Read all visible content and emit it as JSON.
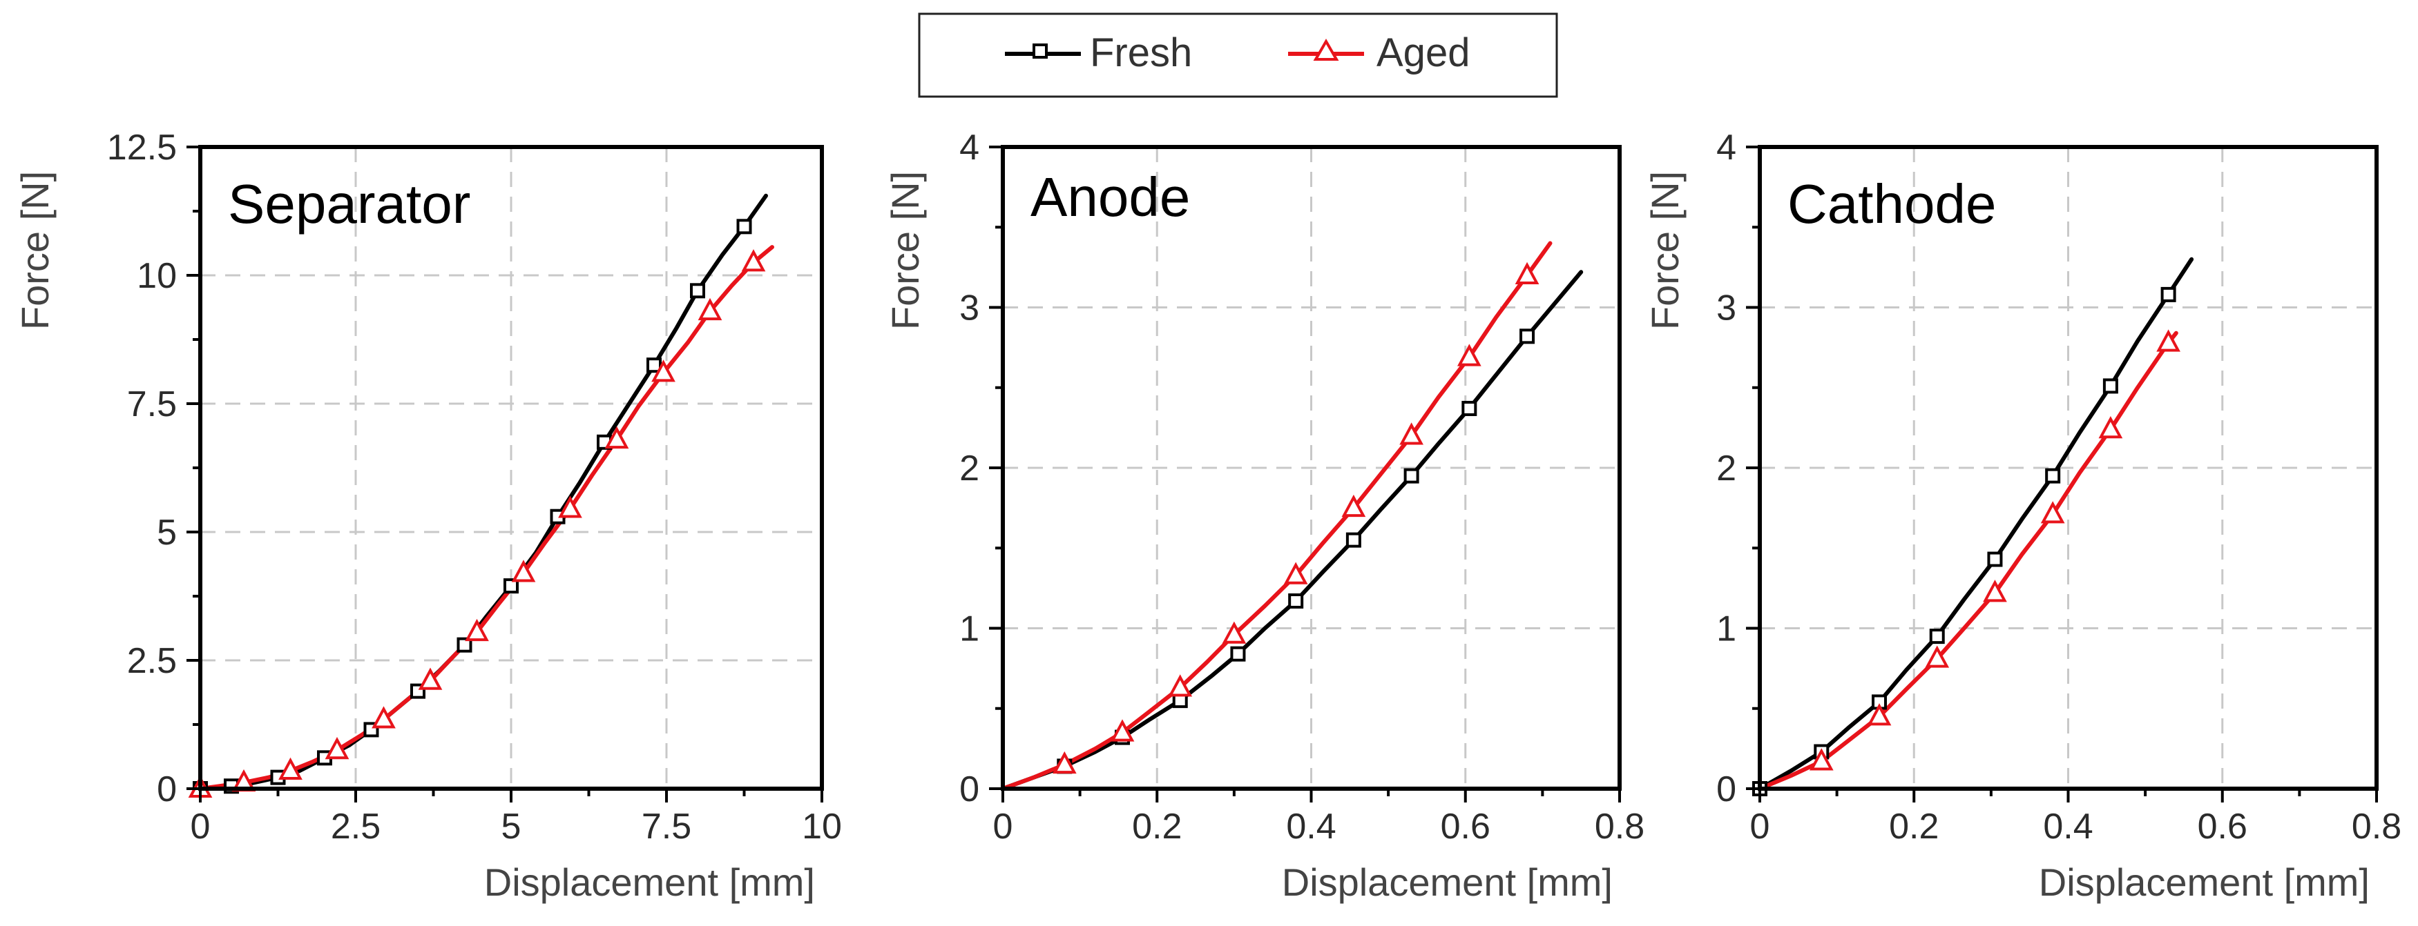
{
  "legend": {
    "entries": [
      {
        "name": "Fresh",
        "color": "#000000",
        "marker": "square"
      },
      {
        "name": "Aged",
        "color": "#e8141b",
        "marker": "triangle"
      }
    ]
  },
  "chart_data": [
    {
      "type": "line",
      "title": "Separator",
      "xlabel": "Displacement [mm]",
      "ylabel": "Force [N]",
      "xlim": [
        0,
        10
      ],
      "ylim": [
        0,
        12.5
      ],
      "xticks": [
        0,
        2.5,
        5,
        7.5,
        10
      ],
      "xtick_labels": [
        "0",
        "2.5",
        "5",
        "7.5",
        "10"
      ],
      "yticks": [
        0,
        2.5,
        5,
        7.5,
        10,
        12.5
      ],
      "ytick_labels": [
        "0",
        "2.5",
        "5",
        "7.5",
        "10",
        "12.5"
      ],
      "grid": true,
      "series": [
        {
          "name": "Fresh",
          "x": [
            0,
            0.25,
            0.5,
            0.8,
            1.25,
            1.6,
            2.0,
            2.4,
            2.75,
            3.1,
            3.5,
            3.85,
            4.25,
            4.6,
            5.0,
            5.4,
            5.75,
            6.1,
            6.5,
            6.9,
            7.3,
            7.65,
            8.0,
            8.4,
            8.75,
            9.1
          ],
          "y": [
            0,
            0.02,
            0.05,
            0.1,
            0.22,
            0.35,
            0.6,
            0.85,
            1.15,
            1.5,
            1.9,
            2.3,
            2.8,
            3.35,
            3.95,
            4.6,
            5.3,
            5.95,
            6.75,
            7.5,
            8.25,
            8.95,
            9.7,
            10.4,
            10.95,
            11.55
          ]
        },
        {
          "name": "Aged",
          "x": [
            0,
            0.3,
            0.7,
            1.1,
            1.45,
            1.8,
            2.2,
            2.6,
            2.95,
            3.3,
            3.7,
            4.05,
            4.45,
            4.8,
            5.2,
            5.55,
            5.95,
            6.3,
            6.7,
            7.05,
            7.45,
            7.85,
            8.2,
            8.55,
            8.9,
            9.2
          ],
          "y": [
            0,
            0.05,
            0.12,
            0.22,
            0.35,
            0.52,
            0.75,
            1.05,
            1.35,
            1.7,
            2.1,
            2.55,
            3.05,
            3.6,
            4.2,
            4.8,
            5.45,
            6.1,
            6.8,
            7.45,
            8.1,
            8.7,
            9.3,
            9.8,
            10.25,
            10.55
          ]
        }
      ],
      "marker_points": [
        {
          "series": "Fresh",
          "x": [
            0,
            0.5,
            1.25,
            2.0,
            2.75,
            3.5,
            4.25,
            5.0,
            5.75,
            6.5,
            7.3,
            8.0,
            8.75
          ],
          "y": [
            0,
            0.05,
            0.22,
            0.6,
            1.15,
            1.9,
            2.8,
            3.95,
            5.3,
            6.75,
            8.25,
            9.7,
            10.95
          ]
        },
        {
          "series": "Aged",
          "x": [
            0,
            0.7,
            1.45,
            2.2,
            2.95,
            3.7,
            4.45,
            5.2,
            5.95,
            6.7,
            7.45,
            8.2,
            8.9
          ],
          "y": [
            0,
            0.12,
            0.35,
            0.75,
            1.35,
            2.1,
            3.05,
            4.2,
            5.45,
            6.8,
            8.1,
            9.3,
            10.25
          ]
        }
      ]
    },
    {
      "type": "line",
      "title": "Anode",
      "xlabel": "Displacement [mm]",
      "ylabel": "Force [N]",
      "xlim": [
        0,
        0.8
      ],
      "ylim": [
        0,
        4
      ],
      "xticks": [
        0,
        0.2,
        0.4,
        0.6,
        0.8
      ],
      "xtick_labels": [
        "0",
        "0.2",
        "0.4",
        "0.6",
        "0.8"
      ],
      "yticks": [
        0,
        1,
        2,
        3,
        4
      ],
      "ytick_labels": [
        "0",
        "1",
        "2",
        "3",
        "4"
      ],
      "grid": true,
      "series": [
        {
          "name": "Fresh",
          "x": [
            0,
            0.04,
            0.08,
            0.12,
            0.155,
            0.19,
            0.23,
            0.27,
            0.305,
            0.34,
            0.38,
            0.415,
            0.455,
            0.49,
            0.53,
            0.565,
            0.605,
            0.64,
            0.68,
            0.715,
            0.75
          ],
          "y": [
            0,
            0.07,
            0.14,
            0.23,
            0.32,
            0.43,
            0.55,
            0.7,
            0.84,
            1.0,
            1.17,
            1.35,
            1.55,
            1.74,
            1.95,
            2.15,
            2.37,
            2.58,
            2.82,
            3.02,
            3.22
          ]
        },
        {
          "name": "Aged",
          "x": [
            0,
            0.04,
            0.08,
            0.12,
            0.155,
            0.19,
            0.23,
            0.265,
            0.3,
            0.34,
            0.38,
            0.415,
            0.455,
            0.49,
            0.53,
            0.565,
            0.605,
            0.64,
            0.68,
            0.71
          ],
          "y": [
            0,
            0.07,
            0.15,
            0.25,
            0.35,
            0.48,
            0.63,
            0.79,
            0.96,
            1.14,
            1.33,
            1.53,
            1.75,
            1.96,
            2.2,
            2.44,
            2.69,
            2.94,
            3.2,
            3.4
          ]
        }
      ],
      "marker_points": [
        {
          "series": "Fresh",
          "x": [
            0.08,
            0.155,
            0.23,
            0.305,
            0.38,
            0.455,
            0.53,
            0.605,
            0.68
          ],
          "y": [
            0.14,
            0.32,
            0.55,
            0.84,
            1.17,
            1.55,
            1.95,
            2.37,
            2.82
          ]
        },
        {
          "series": "Aged",
          "x": [
            0.08,
            0.155,
            0.23,
            0.3,
            0.38,
            0.455,
            0.53,
            0.605,
            0.68
          ],
          "y": [
            0.15,
            0.35,
            0.63,
            0.96,
            1.33,
            1.75,
            2.2,
            2.69,
            3.2
          ]
        }
      ]
    },
    {
      "type": "line",
      "title": "Cathode",
      "xlabel": "Displacement [mm]",
      "ylabel": "Force [N]",
      "xlim": [
        0,
        0.8
      ],
      "ylim": [
        0,
        4
      ],
      "xticks": [
        0,
        0.2,
        0.4,
        0.6,
        0.8
      ],
      "xtick_labels": [
        "0",
        "0.2",
        "0.4",
        "0.6",
        "0.8"
      ],
      "yticks": [
        0,
        1,
        2,
        3,
        4
      ],
      "ytick_labels": [
        "0",
        "1",
        "2",
        "3",
        "4"
      ],
      "grid": true,
      "series": [
        {
          "name": "Fresh",
          "x": [
            0,
            0.04,
            0.08,
            0.115,
            0.155,
            0.19,
            0.23,
            0.265,
            0.305,
            0.34,
            0.38,
            0.415,
            0.455,
            0.49,
            0.53,
            0.56
          ],
          "y": [
            0,
            0.11,
            0.23,
            0.38,
            0.54,
            0.74,
            0.95,
            1.18,
            1.43,
            1.68,
            1.95,
            2.22,
            2.51,
            2.79,
            3.08,
            3.3
          ]
        },
        {
          "name": "Aged",
          "x": [
            0,
            0.04,
            0.08,
            0.115,
            0.155,
            0.19,
            0.23,
            0.265,
            0.305,
            0.34,
            0.38,
            0.415,
            0.455,
            0.49,
            0.53,
            0.54
          ],
          "y": [
            0,
            0.08,
            0.17,
            0.3,
            0.45,
            0.62,
            0.81,
            1.0,
            1.22,
            1.46,
            1.71,
            1.97,
            2.24,
            2.5,
            2.78,
            2.84
          ]
        }
      ],
      "marker_points": [
        {
          "series": "Fresh",
          "x": [
            0,
            0.08,
            0.155,
            0.23,
            0.305,
            0.38,
            0.455,
            0.53
          ],
          "y": [
            0,
            0.23,
            0.54,
            0.95,
            1.43,
            1.95,
            2.51,
            3.08
          ]
        },
        {
          "series": "Aged",
          "x": [
            0.08,
            0.155,
            0.23,
            0.305,
            0.38,
            0.455,
            0.53
          ],
          "y": [
            0.17,
            0.45,
            0.81,
            1.22,
            1.71,
            2.24,
            2.78
          ]
        }
      ]
    }
  ]
}
